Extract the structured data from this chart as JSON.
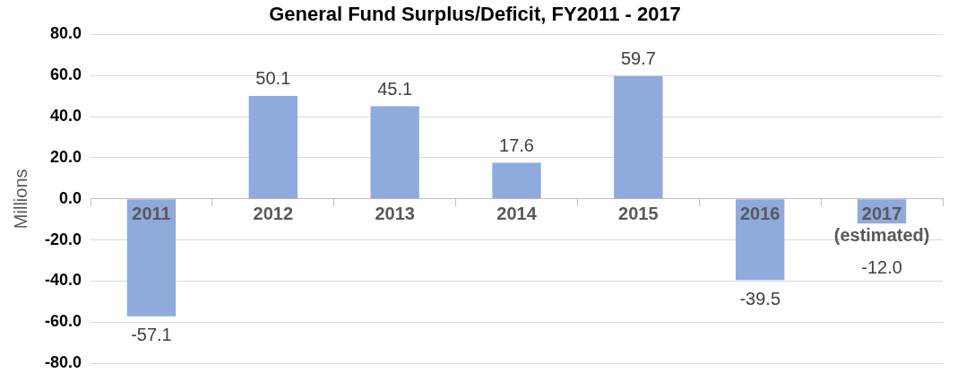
{
  "chart_data": {
    "type": "bar",
    "title": "General Fund Surplus/Deficit, FY2011 - 2017",
    "ylabel": "Millions",
    "categories": [
      "2011",
      "2012",
      "2013",
      "2014",
      "2015",
      "2016",
      "2017\n(estimated)"
    ],
    "values": [
      -57.1,
      50.1,
      45.1,
      17.6,
      59.7,
      -39.5,
      -12.0
    ],
    "color": "#8faadc",
    "ylim": [
      -80,
      80
    ],
    "yticks": [
      {
        "value": -80,
        "label": "-80.0"
      },
      {
        "value": -60,
        "label": "-60.0"
      },
      {
        "value": -40,
        "label": "-40.0"
      },
      {
        "value": -20,
        "label": "-20.0"
      },
      {
        "value": 0,
        "label": "0.0"
      },
      {
        "value": 20,
        "label": "20.0"
      },
      {
        "value": 40,
        "label": "40.0"
      },
      {
        "value": 60,
        "label": "60.0"
      },
      {
        "value": 80,
        "label": "80.0"
      }
    ],
    "value_labels": [
      "-57.1",
      "50.1",
      "45.1",
      "17.6",
      "59.7",
      "-39.5",
      "-12.0"
    ],
    "grid": "y",
    "legend": false
  }
}
